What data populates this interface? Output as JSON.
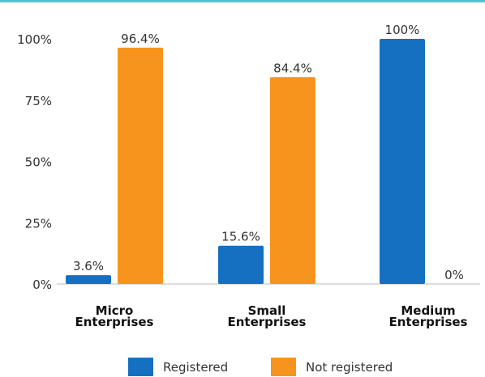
{
  "chart_data": {
    "type": "bar",
    "categories": [
      [
        "Micro",
        "Enterprises"
      ],
      [
        "Small",
        "Enterprises"
      ],
      [
        "Medium",
        "Enterprises"
      ]
    ],
    "series": [
      {
        "name": "Registered",
        "color": "#1670c2",
        "values": [
          3.6,
          15.6,
          100
        ],
        "labels": [
          "3.6%",
          "15.6%",
          "100%"
        ]
      },
      {
        "name": "Not registered",
        "color": "#f7941d",
        "values": [
          96.4,
          84.4,
          0
        ],
        "labels": [
          "96.4%",
          "84.4%",
          "0%"
        ]
      }
    ],
    "yticks": [
      "0%",
      "25%",
      "50%",
      "75%",
      "100%"
    ],
    "ytick_values": [
      0,
      25,
      50,
      75,
      100
    ],
    "ylim": [
      0,
      100
    ],
    "grid": false,
    "legend_position": "bottom",
    "title": "",
    "xlabel": "",
    "ylabel": ""
  },
  "colors": {
    "accent_rule": "#4fc3d9",
    "axis": "#bbbbbb"
  }
}
